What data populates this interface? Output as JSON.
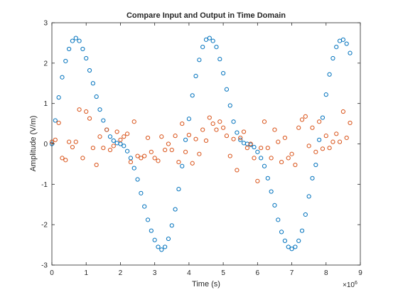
{
  "chart_data": {
    "type": "scatter",
    "title": "Compare Input and Output in Time Domain",
    "xlabel": "Time (s)",
    "ylabel": "Amplitude (V/m)",
    "x_exponent_base": "×10",
    "x_exponent_power": "6",
    "xlim": [
      0,
      9
    ],
    "ylim": [
      -3,
      3
    ],
    "x_unit_scale": 1000000,
    "xticks": [
      0,
      1,
      2,
      3,
      4,
      5,
      6,
      7,
      8,
      9
    ],
    "yticks": [
      -3,
      -2,
      -1,
      0,
      1,
      2,
      3
    ],
    "grid": false,
    "legend": "none",
    "series": [
      {
        "color": "#0072BD",
        "x": [
          0.0,
          0.1,
          0.2,
          0.3,
          0.4,
          0.5,
          0.6,
          0.7,
          0.8,
          0.9,
          1.0,
          1.1,
          1.2,
          1.3,
          1.4,
          1.5,
          1.6,
          1.7,
          1.8,
          1.9,
          2.0,
          2.1,
          2.2,
          2.3,
          2.4,
          2.5,
          2.6,
          2.7,
          2.8,
          2.9,
          3.0,
          3.1,
          3.2,
          3.3,
          3.4,
          3.5,
          3.6,
          3.7,
          3.8,
          3.9,
          4.0,
          4.1,
          4.2,
          4.3,
          4.4,
          4.5,
          4.6,
          4.7,
          4.8,
          4.9,
          5.0,
          5.1,
          5.2,
          5.3,
          5.4,
          5.5,
          5.6,
          5.7,
          5.8,
          5.9,
          6.0,
          6.1,
          6.2,
          6.3,
          6.4,
          6.5,
          6.6,
          6.7,
          6.8,
          6.9,
          7.0,
          7.1,
          7.2,
          7.3,
          7.4,
          7.5,
          7.6,
          7.7,
          7.8,
          7.9,
          8.0,
          8.1,
          8.2,
          8.3,
          8.4,
          8.5,
          8.6,
          8.7
        ],
        "y": [
          0.0,
          0.58,
          1.15,
          1.65,
          2.05,
          2.35,
          2.55,
          2.62,
          2.55,
          2.35,
          2.12,
          1.82,
          1.5,
          1.17,
          0.85,
          0.58,
          0.35,
          0.18,
          0.08,
          0.02,
          0.0,
          -0.05,
          -0.18,
          -0.35,
          -0.6,
          -0.88,
          -1.22,
          -1.55,
          -1.88,
          -2.15,
          -2.38,
          -2.55,
          -2.62,
          -2.55,
          -2.35,
          -2.02,
          -1.62,
          -1.12,
          -0.55,
          0.1,
          0.62,
          1.2,
          1.68,
          2.08,
          2.4,
          2.58,
          2.62,
          2.55,
          2.4,
          2.1,
          1.75,
          1.35,
          0.95,
          0.55,
          0.28,
          0.1,
          0.02,
          0.0,
          -0.02,
          -0.08,
          -0.2,
          -0.35,
          -0.55,
          -0.85,
          -1.18,
          -1.52,
          -1.88,
          -2.18,
          -2.4,
          -2.55,
          -2.6,
          -2.55,
          -2.4,
          -2.15,
          -1.75,
          -1.3,
          -0.85,
          -0.52,
          0.1,
          0.65,
          1.22,
          1.72,
          2.12,
          2.4,
          2.55,
          2.58,
          2.48,
          2.25
        ]
      },
      {
        "color": "#D95319",
        "x": [
          0.0,
          0.1,
          0.2,
          0.3,
          0.4,
          0.5,
          0.6,
          0.7,
          0.8,
          0.9,
          1.0,
          1.1,
          1.2,
          1.3,
          1.4,
          1.5,
          1.6,
          1.7,
          1.8,
          1.9,
          2.0,
          2.1,
          2.2,
          2.3,
          2.4,
          2.5,
          2.6,
          2.7,
          2.8,
          2.9,
          3.0,
          3.1,
          3.2,
          3.3,
          3.4,
          3.5,
          3.6,
          3.7,
          3.8,
          3.9,
          4.0,
          4.1,
          4.2,
          4.3,
          4.4,
          4.5,
          4.6,
          4.7,
          4.8,
          4.9,
          5.0,
          5.1,
          5.2,
          5.3,
          5.4,
          5.5,
          5.6,
          5.7,
          5.8,
          5.9,
          6.0,
          6.1,
          6.2,
          6.3,
          6.4,
          6.5,
          6.6,
          6.7,
          6.8,
          6.9,
          7.0,
          7.1,
          7.2,
          7.3,
          7.4,
          7.5,
          7.6,
          7.7,
          7.8,
          7.9,
          8.0,
          8.1,
          8.2,
          8.3,
          8.4,
          8.5,
          8.6,
          8.7
        ],
        "y": [
          0.05,
          0.1,
          0.52,
          -0.35,
          -0.4,
          0.05,
          -0.08,
          0.05,
          0.85,
          -0.35,
          0.8,
          0.63,
          -0.1,
          -0.52,
          0.18,
          -0.1,
          0.35,
          -0.15,
          -0.05,
          0.3,
          0.1,
          0.18,
          0.25,
          -0.45,
          0.55,
          -0.3,
          -0.35,
          -0.3,
          0.15,
          -0.2,
          -0.35,
          -0.42,
          0.18,
          -0.15,
          0.0,
          -0.15,
          0.2,
          -0.45,
          0.5,
          -0.2,
          0.22,
          -0.48,
          0.12,
          -0.25,
          0.35,
          0.08,
          0.65,
          0.5,
          0.35,
          0.55,
          0.4,
          0.2,
          -0.3,
          0.12,
          -0.65,
          0.15,
          0.3,
          -0.1,
          0.0,
          -0.35,
          -0.92,
          -0.1,
          0.55,
          -0.1,
          -0.35,
          0.35,
          0.05,
          -0.45,
          0.15,
          -0.35,
          -0.25,
          -0.52,
          0.4,
          0.6,
          0.68,
          -0.05,
          0.4,
          -0.2,
          0.55,
          -0.12,
          0.2,
          -0.1,
          0.05,
          0.25,
          0.05,
          0.8,
          0.15,
          0.52
        ]
      }
    ]
  }
}
